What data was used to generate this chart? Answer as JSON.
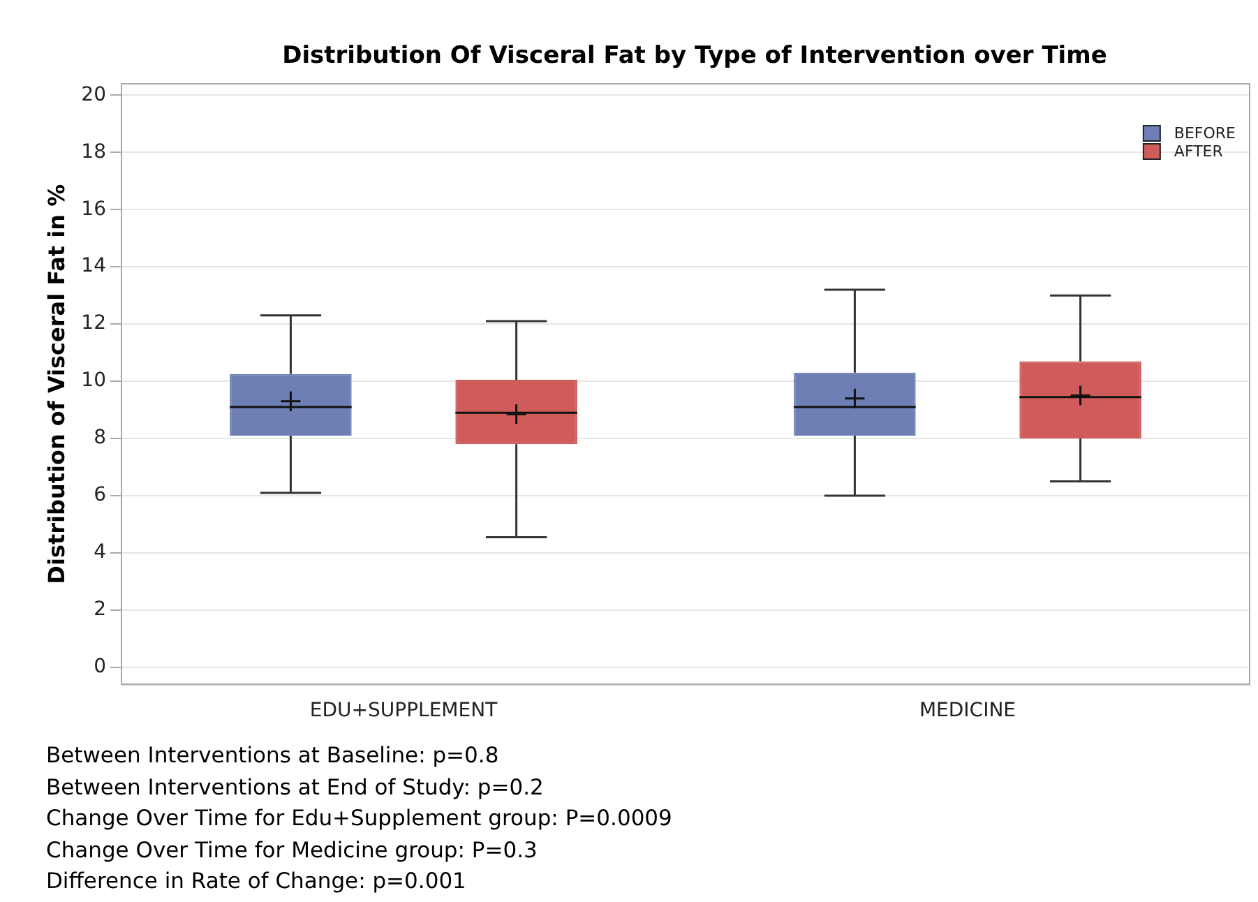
{
  "chart_data": {
    "type": "box",
    "title": "Distribution Of Visceral Fat by Type of Intervention over Time",
    "ylabel": "Distribution of Visceral Fat in %",
    "categories": [
      "EDU+SUPPLEMENT",
      "MEDICINE"
    ],
    "series": [
      {
        "name": "BEFORE",
        "color": "#6e7fb5",
        "boxes": [
          {
            "low": 6.1,
            "q1": 8.1,
            "median": 9.1,
            "q3": 10.25,
            "high": 12.3,
            "mean": 9.3
          },
          {
            "low": 6.0,
            "q1": 8.1,
            "median": 9.1,
            "q3": 10.3,
            "high": 13.2,
            "mean": 9.4
          }
        ]
      },
      {
        "name": "AFTER",
        "color": "#d05b5b",
        "boxes": [
          {
            "low": 4.55,
            "q1": 7.8,
            "median": 8.9,
            "q3": 10.05,
            "high": 12.1,
            "mean": 8.85
          },
          {
            "low": 6.5,
            "q1": 8.0,
            "median": 9.45,
            "q3": 10.7,
            "high": 13.0,
            "mean": 9.5
          }
        ]
      }
    ],
    "ylim": [
      -0.6,
      20.4
    ],
    "yticks": [
      0,
      2,
      4,
      6,
      8,
      10,
      12,
      14,
      16,
      18,
      20
    ],
    "grid": "y",
    "legend": "top right",
    "annotations": [
      "Between Interventions at Baseline: p=0.8",
      "Between Interventions at End of Study: p=0.2",
      "Change Over Time for Edu+Supplement group: P=0.0009",
      "Change Over Time for Medicine group: P=0.3",
      "Difference in Rate of Change: p=0.001"
    ]
  }
}
